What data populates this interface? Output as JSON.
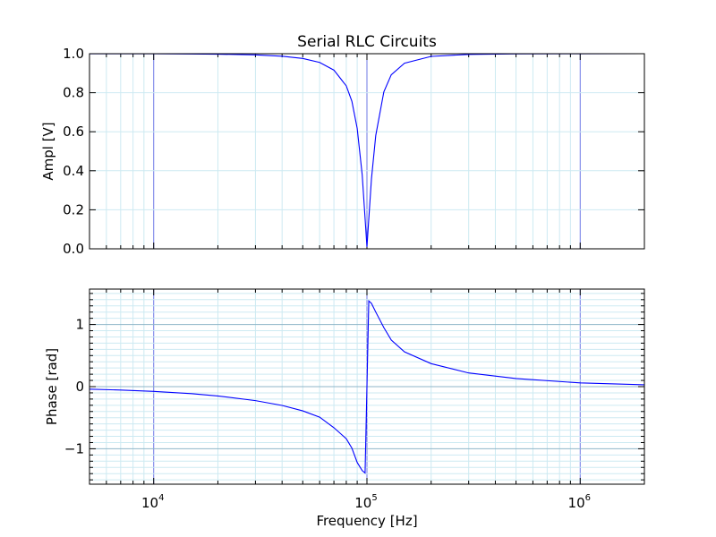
{
  "chart_data": [
    {
      "type": "line",
      "title": "Serial RLC Circuits",
      "xlabel": "",
      "ylabel": "Ampl [V]",
      "xscale": "log",
      "xlim": [
        5000,
        2000000
      ],
      "ylim": [
        0.0,
        1.0
      ],
      "yticks": [
        0.0,
        0.2,
        0.4,
        0.6,
        0.8,
        1.0
      ],
      "ytick_labels": [
        "0.0",
        "0.2",
        "0.4",
        "0.6",
        "0.8",
        "1.0"
      ],
      "grid": true,
      "series": [
        {
          "color": "#0000ff",
          "x": [
            5000,
            7000,
            10000,
            15000,
            20000,
            30000,
            40000,
            50000,
            60000,
            70000,
            80000,
            85000,
            90000,
            95000,
            98000,
            100000,
            102000,
            105000,
            110000,
            120000,
            130000,
            150000,
            200000,
            300000,
            500000,
            1000000,
            2000000
          ],
          "y": [
            0.9999,
            0.9998,
            0.9995,
            0.9987,
            0.9975,
            0.9938,
            0.9871,
            0.9756,
            0.9552,
            0.9159,
            0.835,
            0.756,
            0.6174,
            0.3794,
            0.156,
            0.01,
            0.1529,
            0.3594,
            0.5815,
            0.8043,
            0.8919,
            0.9514,
            0.9863,
            0.9963,
            0.999,
            0.9998,
            1.0
          ]
        }
      ]
    },
    {
      "type": "line",
      "title": "",
      "xlabel": "Frequency [Hz]",
      "ylabel": "Phase [rad]",
      "xscale": "log",
      "xlim": [
        5000,
        2000000
      ],
      "ylim": [
        -1.57,
        1.57
      ],
      "yticks": [
        -1,
        0,
        1
      ],
      "ytick_labels": [
        "−1",
        "0",
        "1"
      ],
      "xtick_values": [
        10000,
        100000,
        1000000
      ],
      "xtick_labels": [
        {
          "base": "10",
          "exp": "4"
        },
        {
          "base": "10",
          "exp": "5"
        },
        {
          "base": "10",
          "exp": "6"
        }
      ],
      "grid": true,
      "series": [
        {
          "color": "#0000ff",
          "x": [
            5000,
            7000,
            10000,
            15000,
            20000,
            30000,
            40000,
            50000,
            60000,
            70000,
            80000,
            85000,
            90000,
            95000,
            98000,
            100000,
            102000,
            105000,
            110000,
            120000,
            130000,
            150000,
            200000,
            300000,
            500000,
            1000000,
            2000000
          ],
          "y": [
            -0.0399,
            -0.0551,
            -0.076,
            -0.1129,
            -0.15,
            -0.225,
            -0.3023,
            -0.39,
            -0.491,
            -0.661,
            -0.838,
            -0.99,
            -1.22,
            -1.35,
            -1.39,
            0.0,
            1.38,
            1.34,
            1.2,
            0.95,
            0.75,
            0.56,
            0.37,
            0.22,
            0.13,
            0.06,
            0.03
          ]
        }
      ]
    }
  ]
}
